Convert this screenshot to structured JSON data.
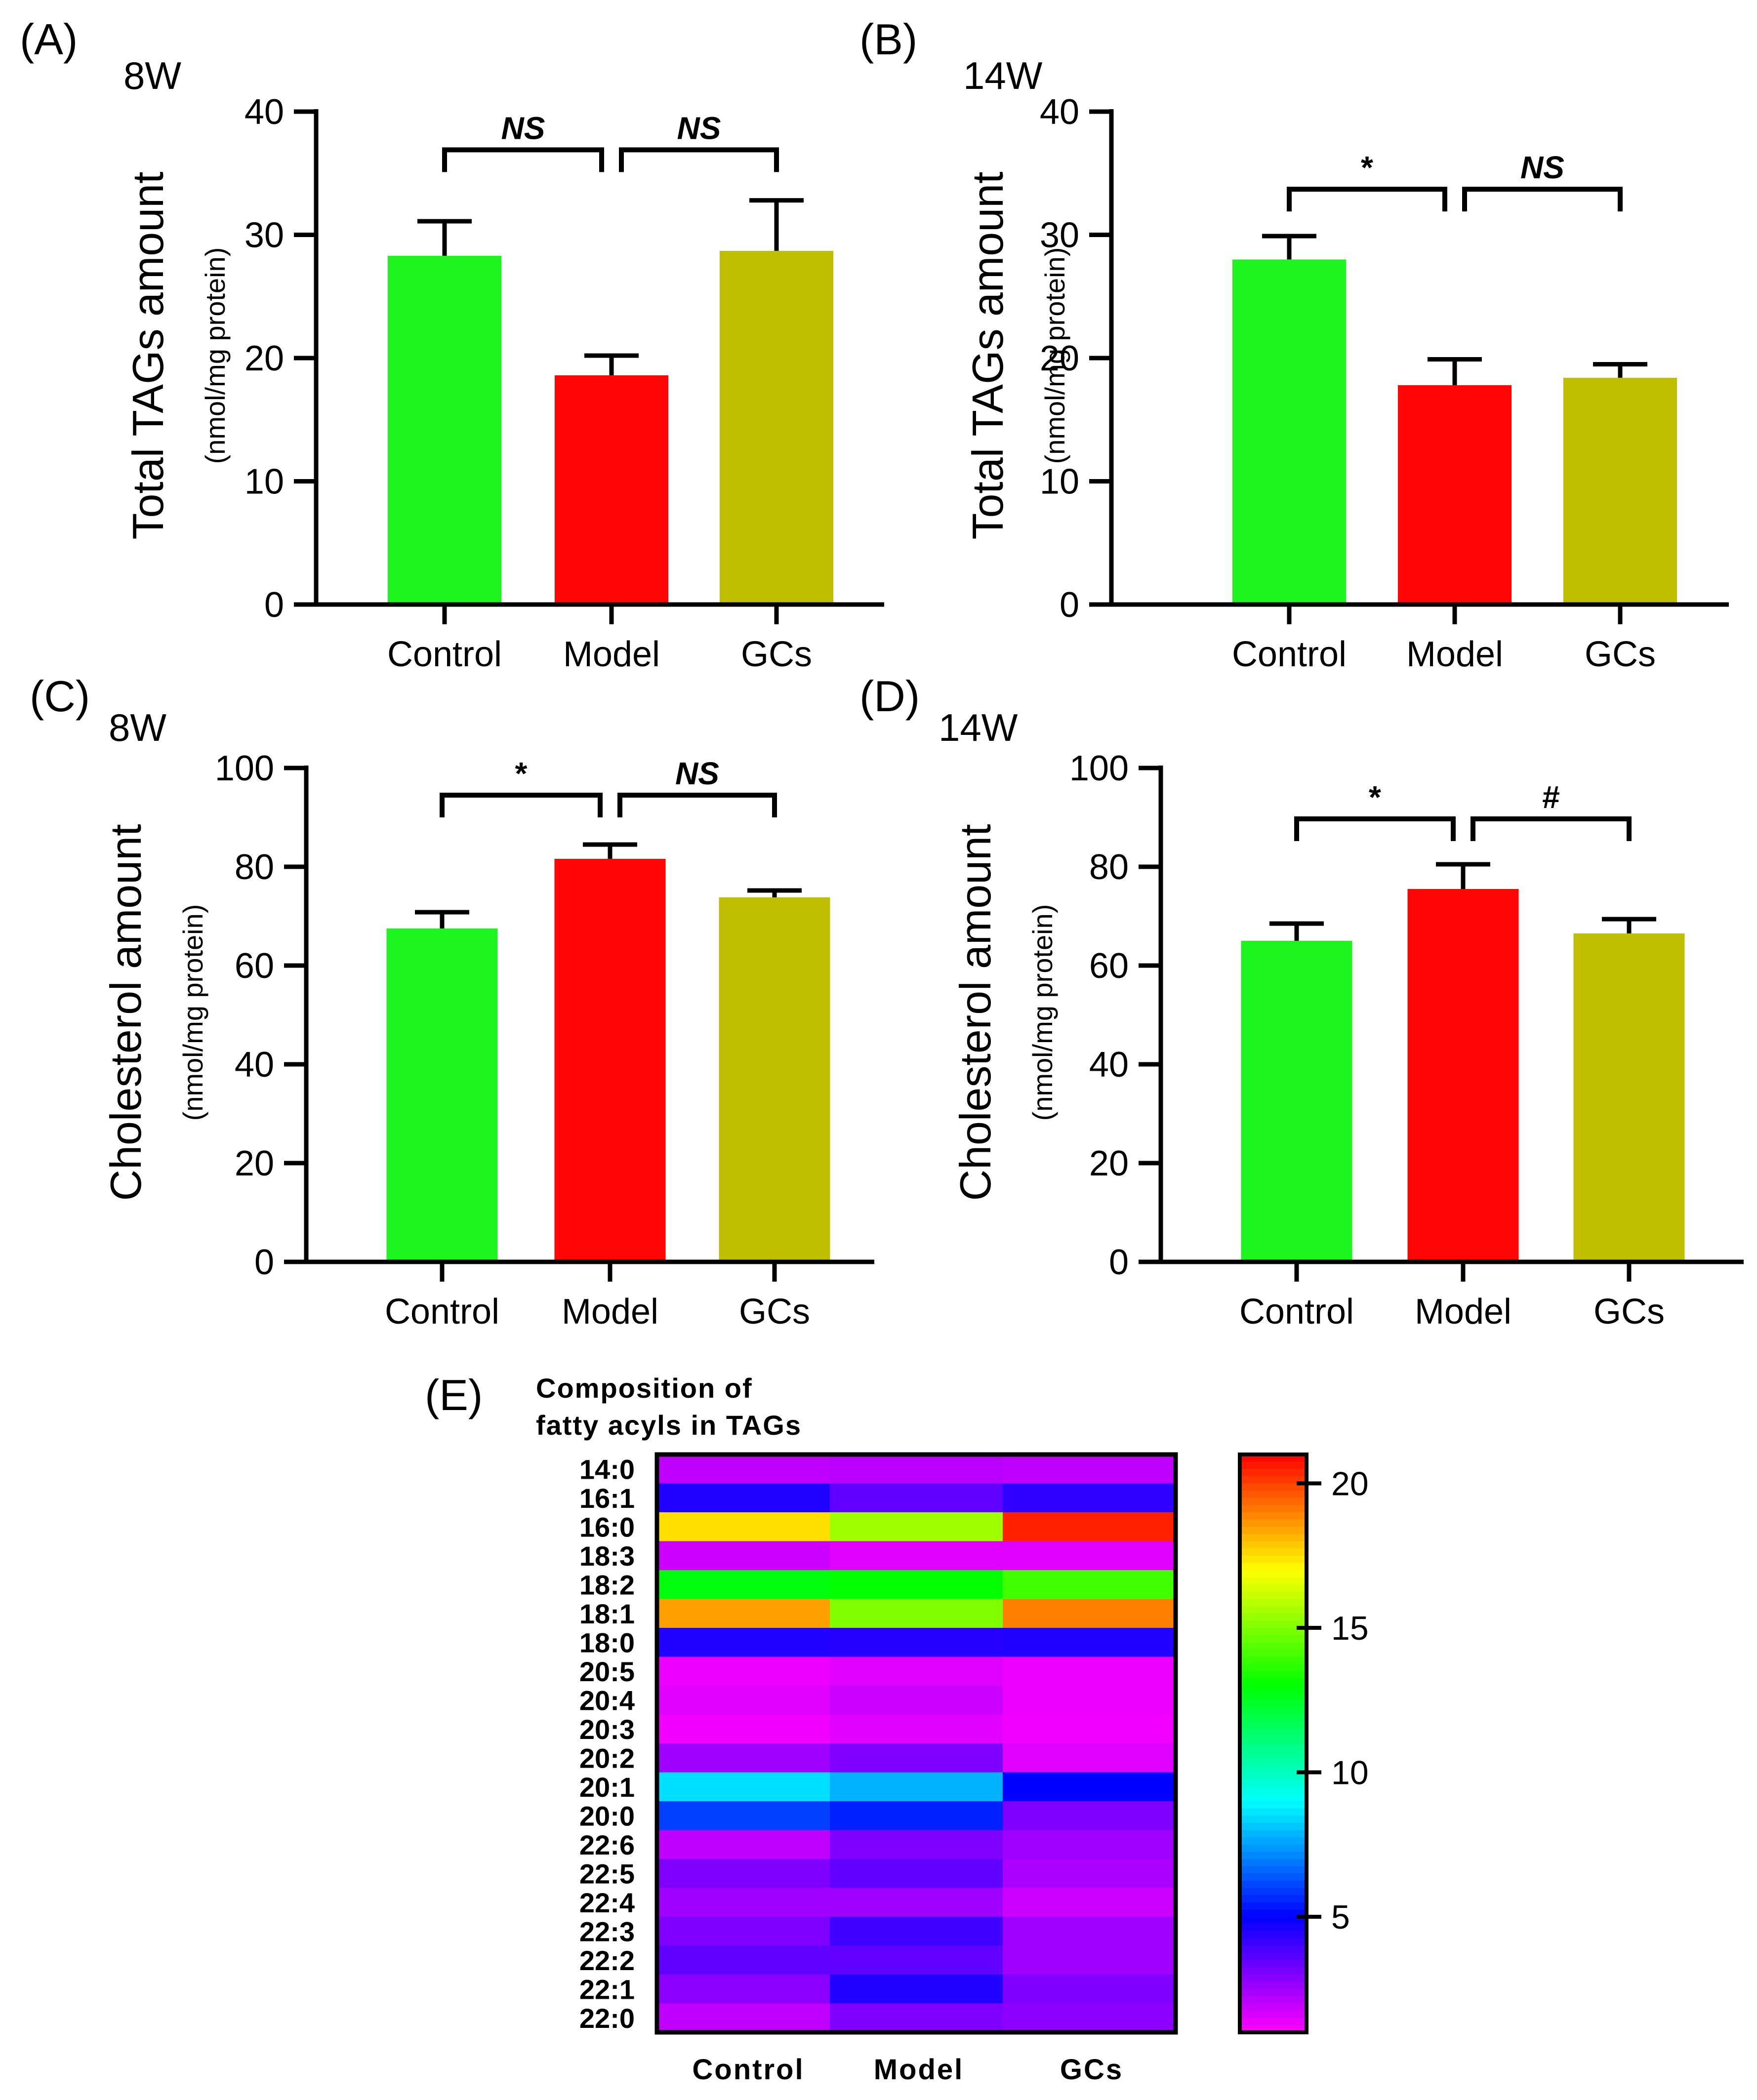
{
  "colors": {
    "control": "#1ef51e",
    "model": "#ff0505",
    "gcs": "#bfbf00"
  },
  "chart_data": [
    {
      "id": "A",
      "type": "bar",
      "panel_label": "(A)",
      "subtitle": "8W",
      "ylabel": "Total TAGs amount",
      "ylabel_units": "(nmol/mg protein)",
      "ylim": [
        0,
        40
      ],
      "yticks": [
        0,
        10,
        20,
        30,
        40
      ],
      "categories": [
        "Control",
        "Model",
        "GCs"
      ],
      "values": [
        28.3,
        18.6,
        28.7
      ],
      "errors": [
        2.8,
        1.6,
        4.1
      ],
      "annotations": [
        {
          "from": 0,
          "to": 1,
          "label": "NS",
          "italic": true,
          "bold": true,
          "bracket_y": 36.9
        },
        {
          "from": 1,
          "to": 2,
          "label": "NS",
          "italic": true,
          "bold": true,
          "bracket_y": 36.9
        }
      ]
    },
    {
      "id": "B",
      "type": "bar",
      "panel_label": "(B)",
      "subtitle": "14W",
      "ylabel": "Total TAGs amount",
      "ylabel_units": "(nmol/mg protein)",
      "ylim": [
        0,
        40
      ],
      "yticks": [
        0,
        10,
        20,
        30,
        40
      ],
      "categories": [
        "Control",
        "Model",
        "GCs"
      ],
      "values": [
        28.0,
        17.8,
        18.4
      ],
      "errors": [
        1.9,
        2.1,
        1.1
      ],
      "annotations": [
        {
          "from": 0,
          "to": 1,
          "label": "*",
          "italic": false,
          "bold": true,
          "bracket_y": 33.7
        },
        {
          "from": 1,
          "to": 2,
          "label": "NS",
          "italic": true,
          "bold": true,
          "bracket_y": 33.7
        }
      ]
    },
    {
      "id": "C",
      "type": "bar",
      "panel_label": "(C)",
      "subtitle": "8W",
      "ylabel": "Cholesterol amount",
      "ylabel_units": "(nmol/mg protein)",
      "ylim": [
        0,
        100
      ],
      "yticks": [
        0,
        20,
        40,
        60,
        80,
        100
      ],
      "categories": [
        "Control",
        "Model",
        "GCs"
      ],
      "values": [
        67.5,
        81.6,
        73.8
      ],
      "errors": [
        3.3,
        2.9,
        1.4
      ],
      "annotations": [
        {
          "from": 0,
          "to": 1,
          "label": "*",
          "italic": false,
          "bold": true,
          "bracket_y": 94.5
        },
        {
          "from": 1,
          "to": 2,
          "label": "NS",
          "italic": true,
          "bold": true,
          "bracket_y": 94.5
        }
      ]
    },
    {
      "id": "D",
      "type": "bar",
      "panel_label": "(D)",
      "subtitle": "14W",
      "ylabel": "Cholesterol amount",
      "ylabel_units": "(nmol/mg protein)",
      "ylim": [
        0,
        100
      ],
      "yticks": [
        0,
        20,
        40,
        60,
        80,
        100
      ],
      "categories": [
        "Control",
        "Model",
        "GCs"
      ],
      "values": [
        65.0,
        75.5,
        66.5
      ],
      "errors": [
        3.5,
        5.0,
        2.9
      ],
      "annotations": [
        {
          "from": 0,
          "to": 1,
          "label": "*",
          "italic": false,
          "bold": true,
          "bracket_y": 89.7
        },
        {
          "from": 1,
          "to": 2,
          "label": "#",
          "italic": false,
          "bold": true,
          "bracket_y": 89.7
        }
      ]
    },
    {
      "id": "E",
      "type": "heatmap",
      "panel_label": "(E)",
      "title": "Composition of fatty acyls in TAGs",
      "title_lines": [
        "Composition of",
        "fatty acyls in TAGs"
      ],
      "columns": [
        "Control",
        "Model",
        "GCs"
      ],
      "rows": [
        "14:0",
        "16:1",
        "16:0",
        "18:3",
        "18:2",
        "18:1",
        "18:0",
        "20:5",
        "20:4",
        "20:3",
        "20:2",
        "20:1",
        "20:0",
        "22:6",
        "22:5",
        "22:4",
        "22:3",
        "22:2",
        "22:1",
        "22:0"
      ],
      "values": [
        [
          2.0,
          2.1,
          2.0
        ],
        [
          4.5,
          3.5,
          4.3
        ],
        [
          17.5,
          15.5,
          20.5
        ],
        [
          1.8,
          1.5,
          1.5
        ],
        [
          12.8,
          13.0,
          14.0
        ],
        [
          18.5,
          15.0,
          19.0
        ],
        [
          4.5,
          4.4,
          4.5
        ],
        [
          1.3,
          1.5,
          1.3
        ],
        [
          1.5,
          1.8,
          1.3
        ],
        [
          1.2,
          1.5,
          1.2
        ],
        [
          2.5,
          3.0,
          1.5
        ],
        [
          8.5,
          7.8,
          5.0
        ],
        [
          6.0,
          5.5,
          3.0
        ],
        [
          2.0,
          3.0,
          2.5
        ],
        [
          3.0,
          3.5,
          2.3
        ],
        [
          2.5,
          2.5,
          1.8
        ],
        [
          3.0,
          4.0,
          2.5
        ],
        [
          3.5,
          3.5,
          2.5
        ],
        [
          2.8,
          4.5,
          3.0
        ],
        [
          2.0,
          3.0,
          2.8
        ]
      ],
      "colorbar_ticks": [
        5,
        10,
        15,
        20
      ],
      "range": [
        1,
        21
      ]
    }
  ]
}
